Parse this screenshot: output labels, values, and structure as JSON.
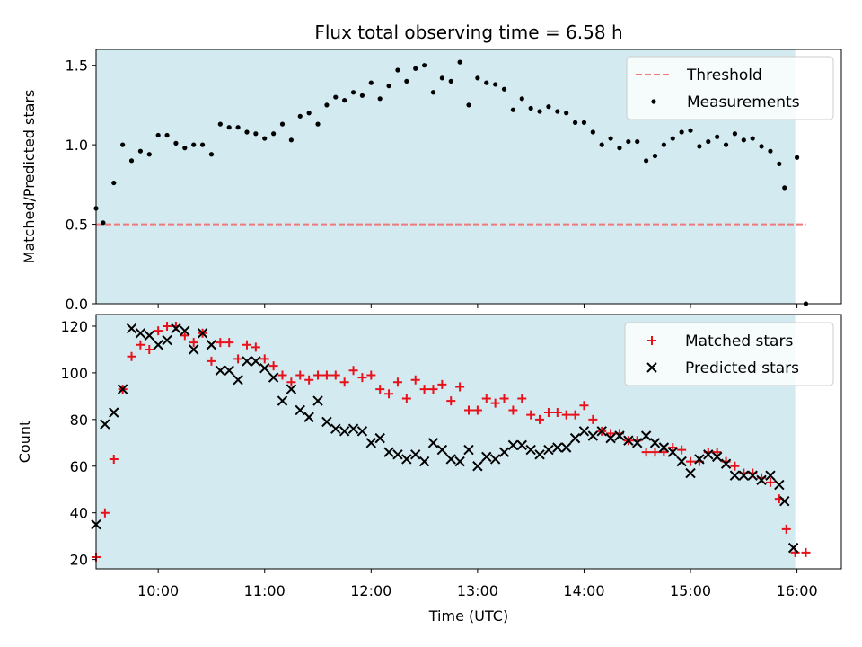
{
  "chart_data": [
    {
      "type": "scatter",
      "title": "Flux total observing time = 6.58 h",
      "xlabel": "",
      "ylabel": "Matched/Predicted stars",
      "ylim": [
        0,
        1.6
      ],
      "yticks": [
        "0.0",
        "0.5",
        "1.0",
        "1.5"
      ],
      "x_axis": "time",
      "xlim": [
        "09:25",
        "16:25"
      ],
      "xticks": [
        "10:00",
        "11:00",
        "12:00",
        "13:00",
        "14:00",
        "15:00",
        "16:00"
      ],
      "x_tick_labels_visible": false,
      "shaded_span": [
        "09:25",
        "15:59"
      ],
      "shade_color": "#d3eaf0",
      "legend": {
        "placement": "top-right",
        "entries": [
          "Threshold",
          "Measurements"
        ]
      },
      "threshold": {
        "name": "Threshold",
        "value": 0.5,
        "x_range": [
          "09:25",
          "16:05"
        ],
        "color": "#ef7a7a",
        "style": "dashed"
      },
      "series": [
        {
          "name": "Measurements",
          "marker": "dot",
          "color": "#000000",
          "points": [
            [
              "09:25",
              0.6
            ],
            [
              "09:29",
              0.51
            ],
            [
              "09:35",
              0.76
            ],
            [
              "09:40",
              1.0
            ],
            [
              "09:45",
              0.9
            ],
            [
              "09:50",
              0.96
            ],
            [
              "09:55",
              0.94
            ],
            [
              "10:00",
              1.06
            ],
            [
              "10:05",
              1.06
            ],
            [
              "10:10",
              1.01
            ],
            [
              "10:15",
              0.98
            ],
            [
              "10:20",
              1.0
            ],
            [
              "10:25",
              1.0
            ],
            [
              "10:30",
              0.94
            ],
            [
              "10:35",
              1.13
            ],
            [
              "10:40",
              1.11
            ],
            [
              "10:45",
              1.11
            ],
            [
              "10:50",
              1.08
            ],
            [
              "10:55",
              1.07
            ],
            [
              "11:00",
              1.04
            ],
            [
              "11:05",
              1.07
            ],
            [
              "11:10",
              1.13
            ],
            [
              "11:15",
              1.03
            ],
            [
              "11:20",
              1.18
            ],
            [
              "11:25",
              1.2
            ],
            [
              "11:30",
              1.13
            ],
            [
              "11:35",
              1.25
            ],
            [
              "11:40",
              1.3
            ],
            [
              "11:45",
              1.28
            ],
            [
              "11:50",
              1.33
            ],
            [
              "11:55",
              1.31
            ],
            [
              "12:00",
              1.39
            ],
            [
              "12:05",
              1.29
            ],
            [
              "12:10",
              1.37
            ],
            [
              "12:15",
              1.47
            ],
            [
              "12:20",
              1.4
            ],
            [
              "12:25",
              1.48
            ],
            [
              "12:30",
              1.5
            ],
            [
              "12:35",
              1.33
            ],
            [
              "12:40",
              1.42
            ],
            [
              "12:45",
              1.4
            ],
            [
              "12:50",
              1.52
            ],
            [
              "12:55",
              1.25
            ],
            [
              "13:00",
              1.42
            ],
            [
              "13:05",
              1.39
            ],
            [
              "13:10",
              1.38
            ],
            [
              "13:15",
              1.35
            ],
            [
              "13:20",
              1.22
            ],
            [
              "13:25",
              1.29
            ],
            [
              "13:30",
              1.23
            ],
            [
              "13:35",
              1.21
            ],
            [
              "13:40",
              1.24
            ],
            [
              "13:45",
              1.21
            ],
            [
              "13:50",
              1.2
            ],
            [
              "13:55",
              1.14
            ],
            [
              "14:00",
              1.14
            ],
            [
              "14:05",
              1.08
            ],
            [
              "14:10",
              1.0
            ],
            [
              "14:15",
              1.04
            ],
            [
              "14:20",
              0.98
            ],
            [
              "14:25",
              1.02
            ],
            [
              "14:30",
              1.02
            ],
            [
              "14:35",
              0.9
            ],
            [
              "14:40",
              0.93
            ],
            [
              "14:45",
              1.0
            ],
            [
              "14:50",
              1.04
            ],
            [
              "14:55",
              1.08
            ],
            [
              "15:00",
              1.09
            ],
            [
              "15:05",
              0.99
            ],
            [
              "15:10",
              1.02
            ],
            [
              "15:15",
              1.05
            ],
            [
              "15:20",
              1.0
            ],
            [
              "15:25",
              1.07
            ],
            [
              "15:30",
              1.03
            ],
            [
              "15:35",
              1.04
            ],
            [
              "15:40",
              0.99
            ],
            [
              "15:45",
              0.96
            ],
            [
              "15:50",
              0.88
            ],
            [
              "15:53",
              0.73
            ],
            [
              "16:00",
              0.92
            ],
            [
              "16:05",
              0.0
            ]
          ]
        }
      ]
    },
    {
      "type": "scatter",
      "title": "",
      "xlabel": "Time (UTC)",
      "ylabel": "Count",
      "ylim": [
        16,
        125
      ],
      "yticks": [
        "20",
        "40",
        "60",
        "80",
        "100",
        "120"
      ],
      "x_axis": "time",
      "xlim": [
        "09:25",
        "16:25"
      ],
      "xticks": [
        "10:00",
        "11:00",
        "12:00",
        "13:00",
        "14:00",
        "15:00",
        "16:00"
      ],
      "x_tick_labels_visible": true,
      "shaded_span": [
        "09:25",
        "15:59"
      ],
      "shade_color": "#d3eaf0",
      "legend": {
        "placement": "top-right",
        "entries": [
          "Matched stars",
          "Predicted stars"
        ]
      },
      "series": [
        {
          "name": "Matched stars",
          "marker": "plus",
          "color": "#e8111a",
          "points": [
            [
              "09:25",
              21
            ],
            [
              "09:30",
              40
            ],
            [
              "09:35",
              63
            ],
            [
              "09:40",
              93
            ],
            [
              "09:45",
              107
            ],
            [
              "09:50",
              112
            ],
            [
              "09:55",
              110
            ],
            [
              "10:00",
              118
            ],
            [
              "10:05",
              120
            ],
            [
              "10:10",
              120
            ],
            [
              "10:15",
              116
            ],
            [
              "10:20",
              113
            ],
            [
              "10:25",
              117
            ],
            [
              "10:30",
              105
            ],
            [
              "10:35",
              113
            ],
            [
              "10:40",
              113
            ],
            [
              "10:45",
              106
            ],
            [
              "10:50",
              112
            ],
            [
              "10:55",
              111
            ],
            [
              "11:00",
              106
            ],
            [
              "11:05",
              103
            ],
            [
              "11:10",
              99
            ],
            [
              "11:15",
              96
            ],
            [
              "11:20",
              99
            ],
            [
              "11:25",
              97
            ],
            [
              "11:30",
              99
            ],
            [
              "11:35",
              99
            ],
            [
              "11:40",
              99
            ],
            [
              "11:45",
              96
            ],
            [
              "11:50",
              101
            ],
            [
              "11:55",
              98
            ],
            [
              "12:00",
              99
            ],
            [
              "12:05",
              93
            ],
            [
              "12:10",
              91
            ],
            [
              "12:15",
              96
            ],
            [
              "12:20",
              89
            ],
            [
              "12:25",
              97
            ],
            [
              "12:30",
              93
            ],
            [
              "12:35",
              93
            ],
            [
              "12:40",
              95
            ],
            [
              "12:45",
              88
            ],
            [
              "12:50",
              94
            ],
            [
              "12:55",
              84
            ],
            [
              "13:00",
              84
            ],
            [
              "13:05",
              89
            ],
            [
              "13:10",
              87
            ],
            [
              "13:15",
              89
            ],
            [
              "13:20",
              84
            ],
            [
              "13:25",
              89
            ],
            [
              "13:30",
              82
            ],
            [
              "13:35",
              80
            ],
            [
              "13:40",
              83
            ],
            [
              "13:45",
              83
            ],
            [
              "13:50",
              82
            ],
            [
              "13:55",
              82
            ],
            [
              "14:00",
              86
            ],
            [
              "14:05",
              80
            ],
            [
              "14:10",
              75
            ],
            [
              "14:15",
              74
            ],
            [
              "14:20",
              74
            ],
            [
              "14:25",
              71
            ],
            [
              "14:30",
              71
            ],
            [
              "14:35",
              66
            ],
            [
              "14:40",
              66
            ],
            [
              "14:45",
              66
            ],
            [
              "14:50",
              68
            ],
            [
              "14:55",
              67
            ],
            [
              "15:00",
              62
            ],
            [
              "15:05",
              62
            ],
            [
              "15:10",
              66
            ],
            [
              "15:15",
              66
            ],
            [
              "15:20",
              62
            ],
            [
              "15:25",
              60
            ],
            [
              "15:30",
              57
            ],
            [
              "15:35",
              57
            ],
            [
              "15:40",
              55
            ],
            [
              "15:45",
              53
            ],
            [
              "15:50",
              46
            ],
            [
              "15:54",
              33
            ],
            [
              "15:59",
              23
            ],
            [
              "16:05",
              23
            ]
          ]
        },
        {
          "name": "Predicted stars",
          "marker": "x",
          "color": "#000000",
          "points": [
            [
              "09:25",
              35
            ],
            [
              "09:30",
              78
            ],
            [
              "09:35",
              83
            ],
            [
              "09:40",
              93
            ],
            [
              "09:45",
              119
            ],
            [
              "09:50",
              117
            ],
            [
              "09:55",
              116
            ],
            [
              "10:00",
              112
            ],
            [
              "10:05",
              114
            ],
            [
              "10:10",
              119
            ],
            [
              "10:15",
              118
            ],
            [
              "10:20",
              110
            ],
            [
              "10:25",
              117
            ],
            [
              "10:30",
              112
            ],
            [
              "10:35",
              101
            ],
            [
              "10:40",
              101
            ],
            [
              "10:45",
              97
            ],
            [
              "10:50",
              105
            ],
            [
              "10:55",
              105
            ],
            [
              "11:00",
              102
            ],
            [
              "11:05",
              98
            ],
            [
              "11:10",
              88
            ],
            [
              "11:15",
              93
            ],
            [
              "11:20",
              84
            ],
            [
              "11:25",
              81
            ],
            [
              "11:30",
              88
            ],
            [
              "11:35",
              79
            ],
            [
              "11:40",
              76
            ],
            [
              "11:45",
              75
            ],
            [
              "11:50",
              76
            ],
            [
              "11:55",
              75
            ],
            [
              "12:00",
              70
            ],
            [
              "12:05",
              72
            ],
            [
              "12:10",
              66
            ],
            [
              "12:15",
              65
            ],
            [
              "12:20",
              63
            ],
            [
              "12:25",
              65
            ],
            [
              "12:30",
              62
            ],
            [
              "12:35",
              70
            ],
            [
              "12:40",
              67
            ],
            [
              "12:45",
              63
            ],
            [
              "12:50",
              62
            ],
            [
              "12:55",
              67
            ],
            [
              "13:00",
              60
            ],
            [
              "13:05",
              64
            ],
            [
              "13:10",
              63
            ],
            [
              "13:15",
              66
            ],
            [
              "13:20",
              69
            ],
            [
              "13:25",
              69
            ],
            [
              "13:30",
              67
            ],
            [
              "13:35",
              65
            ],
            [
              "13:40",
              67
            ],
            [
              "13:45",
              68
            ],
            [
              "13:50",
              68
            ],
            [
              "13:55",
              72
            ],
            [
              "14:00",
              75
            ],
            [
              "14:05",
              73
            ],
            [
              "14:10",
              75
            ],
            [
              "14:15",
              72
            ],
            [
              "14:20",
              73
            ],
            [
              "14:25",
              71
            ],
            [
              "14:30",
              70
            ],
            [
              "14:35",
              73
            ],
            [
              "14:40",
              70
            ],
            [
              "14:45",
              68
            ],
            [
              "14:50",
              66
            ],
            [
              "14:55",
              62
            ],
            [
              "15:00",
              57
            ],
            [
              "15:05",
              63
            ],
            [
              "15:10",
              65
            ],
            [
              "15:15",
              64
            ],
            [
              "15:20",
              61
            ],
            [
              "15:25",
              56
            ],
            [
              "15:30",
              56
            ],
            [
              "15:35",
              56
            ],
            [
              "15:40",
              54
            ],
            [
              "15:45",
              56
            ],
            [
              "15:50",
              52
            ],
            [
              "15:53",
              45
            ],
            [
              "15:58",
              25
            ]
          ]
        }
      ]
    }
  ]
}
